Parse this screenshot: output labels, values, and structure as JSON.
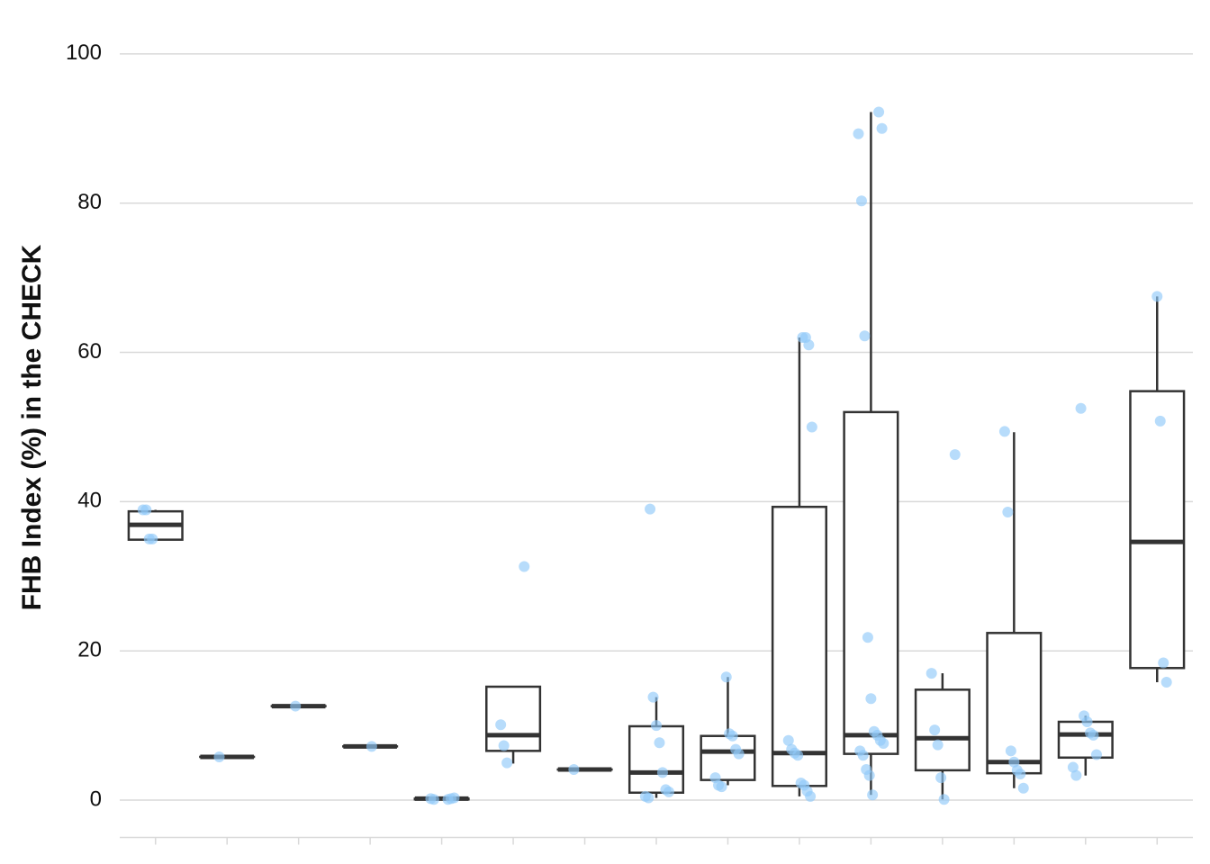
{
  "chart_data": {
    "type": "box",
    "ylabel": "FHB Index (%) in the CHECK",
    "categories": [
      null,
      null,
      null,
      null,
      null,
      null,
      null,
      null,
      null,
      null,
      null,
      null,
      null,
      null,
      null
    ],
    "box_color": "#333333",
    "point_color": "#90caf9",
    "boxes": [
      {
        "whislo": 34.9,
        "q1": 34.9,
        "med": 36.9,
        "q3": 38.7,
        "whishi": 38.9,
        "points": [
          38.9,
          38.9,
          35,
          35
        ]
      },
      {
        "whislo": 5.8,
        "q1": 5.8,
        "med": 5.8,
        "q3": 5.8,
        "whishi": 5.8,
        "points": [
          5.8
        ]
      },
      {
        "whislo": 12.6,
        "q1": 12.6,
        "med": 12.6,
        "q3": 12.6,
        "whishi": 12.6,
        "points": [
          12.6
        ]
      },
      {
        "whislo": 7.2,
        "q1": 7.2,
        "med": 7.2,
        "q3": 7.2,
        "whishi": 7.2,
        "points": [
          7.2
        ]
      },
      {
        "whislo": 0.1,
        "q1": 0.1,
        "med": 0.2,
        "q3": 0.2,
        "whishi": 0.3,
        "points": [
          0.1,
          0.2,
          0.3,
          0.2,
          0.1
        ]
      },
      {
        "whislo": 4.9,
        "q1": 6.6,
        "med": 8.7,
        "q3": 15.2,
        "whishi": 15.2,
        "points": [
          31.3,
          10.1,
          7.3,
          5.0
        ]
      },
      {
        "whislo": 4.1,
        "q1": 4.1,
        "med": 4.1,
        "q3": 4.1,
        "whishi": 4.1,
        "points": [
          4.1
        ]
      },
      {
        "whislo": 0.3,
        "q1": 1.0,
        "med": 3.7,
        "q3": 9.9,
        "whishi": 13.8,
        "points": [
          39,
          13.8,
          10,
          7.7,
          3.7,
          1.4,
          1.1,
          0.5,
          0.3
        ]
      },
      {
        "whislo": 2.0,
        "q1": 2.7,
        "med": 6.5,
        "q3": 8.6,
        "whishi": 16.5,
        "points": [
          16.5,
          8.9,
          8.6,
          6.8,
          6.2,
          3.0,
          2.0,
          1.8
        ]
      },
      {
        "whislo": 0.5,
        "q1": 1.9,
        "med": 6.3,
        "q3": 39.3,
        "whishi": 62,
        "points": [
          62,
          62,
          61,
          50,
          8,
          6.8,
          6.3,
          6,
          2.3,
          2,
          1.2,
          0.5
        ]
      },
      {
        "whislo": 0.7,
        "q1": 6.2,
        "med": 8.7,
        "q3": 52,
        "whishi": 92.2,
        "points": [
          92.2,
          90,
          89.3,
          80.3,
          62.2,
          21.8,
          13.6,
          9.2,
          8.7,
          8,
          7.6,
          6.6,
          6,
          4.1,
          3.3,
          0.7
        ]
      },
      {
        "whislo": 0.1,
        "q1": 4.0,
        "med": 8.3,
        "q3": 14.8,
        "whishi": 17,
        "points": [
          46.3,
          17,
          9.4,
          7.4,
          3,
          0.1
        ]
      },
      {
        "whislo": 1.6,
        "q1": 3.6,
        "med": 5.1,
        "q3": 22.4,
        "whishi": 49.3,
        "points": [
          49.4,
          38.6,
          6.6,
          5.1,
          4,
          3.5,
          1.6
        ]
      },
      {
        "whislo": 3.3,
        "q1": 5.7,
        "med": 8.8,
        "q3": 10.5,
        "whishi": 11.3,
        "points": [
          52.5,
          11.3,
          10.5,
          9,
          8.7,
          6.1,
          4.4,
          3.3
        ]
      },
      {
        "whislo": 15.8,
        "q1": 17.7,
        "med": 34.6,
        "q3": 54.8,
        "whishi": 67.5,
        "points": [
          67.5,
          50.8,
          18.4,
          15.8
        ]
      }
    ],
    "ylim": [
      -5,
      103
    ],
    "yticks": [
      0,
      20,
      40,
      60,
      80,
      100
    ],
    "grid": true
  }
}
